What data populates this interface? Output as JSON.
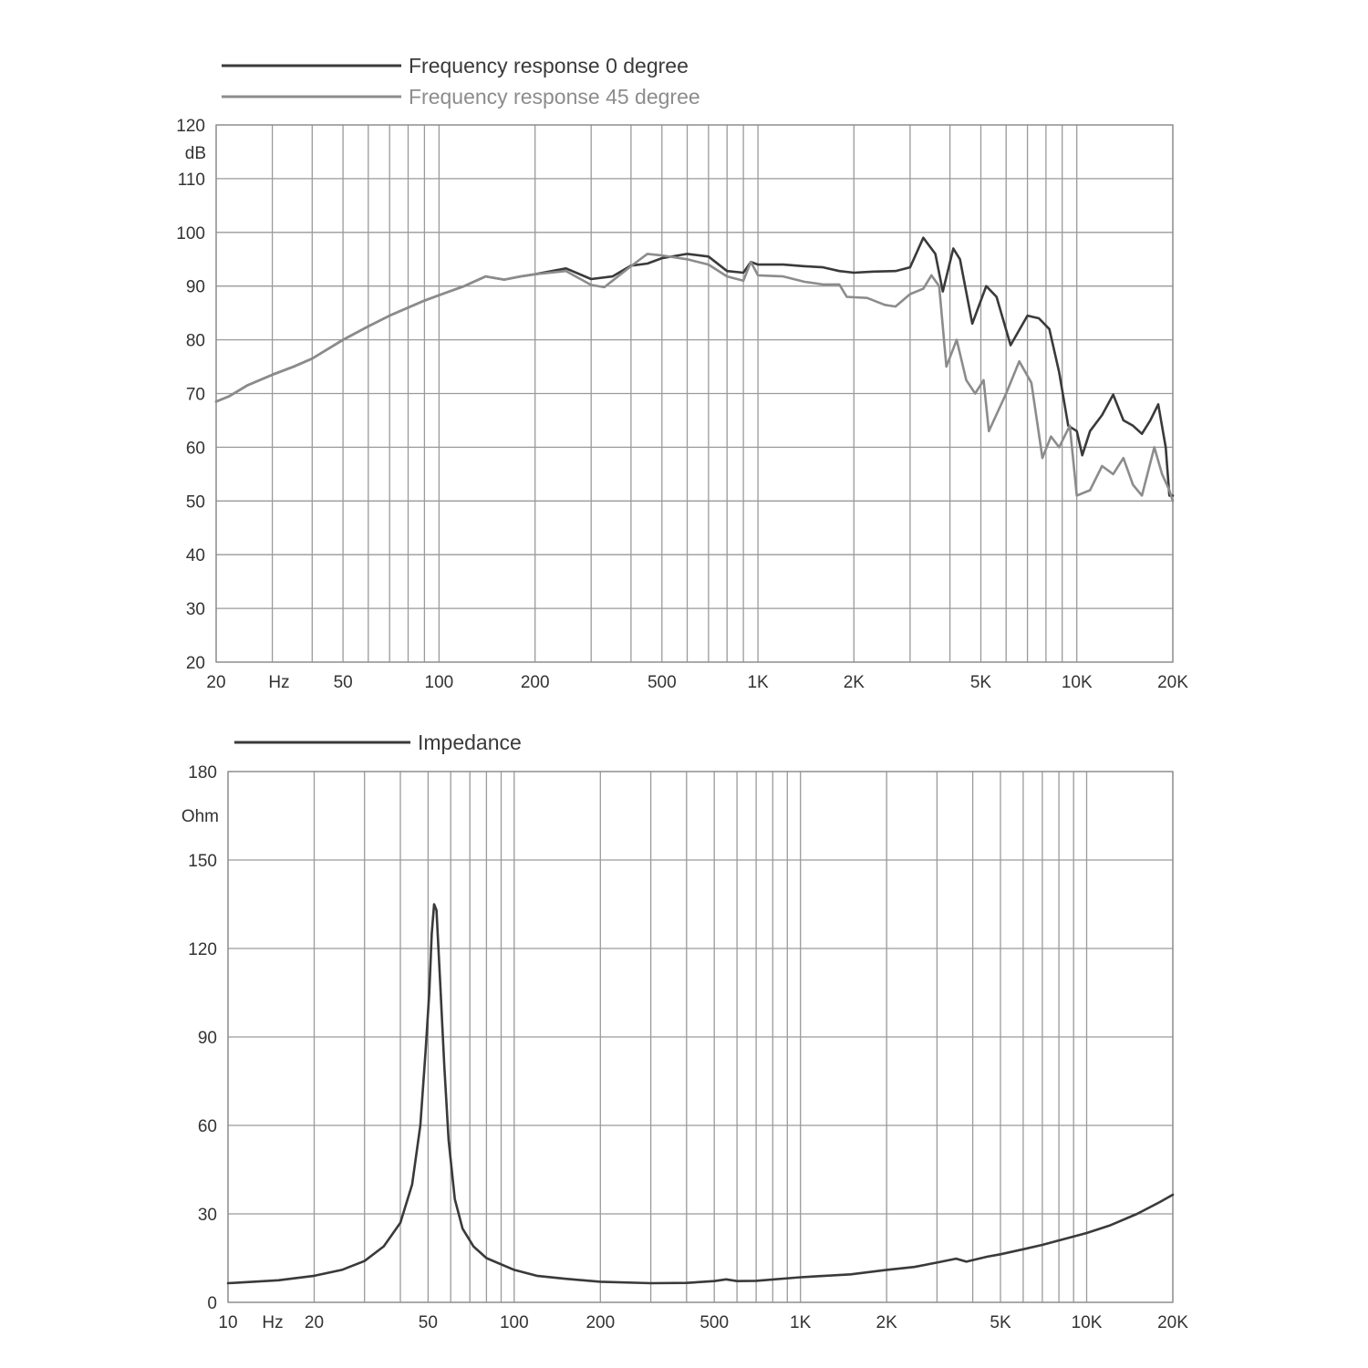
{
  "colors": {
    "series_0deg": "#3a3a3a",
    "series_45deg": "#8c8c8c",
    "impedance": "#3a3a3a",
    "grid": "#9a9a9a",
    "text": "#333333"
  },
  "chart_data": [
    {
      "type": "line",
      "x_scale": "log",
      "xlim": [
        20,
        20000
      ],
      "ylim": [
        20,
        120
      ],
      "ylabel": "dB",
      "xlabel": "Hz",
      "grid": true,
      "legend_position": "top-left",
      "y_ticks": [
        "120",
        "110",
        "100",
        "90",
        "80",
        "70",
        "60",
        "50",
        "40",
        "30",
        "20"
      ],
      "x_ticks": [
        "20",
        "50",
        "100",
        "200",
        "500",
        "1K",
        "2K",
        "5K",
        "10K",
        "20K"
      ],
      "series": [
        {
          "name": "Frequency response 0 degree",
          "points": [
            [
              20,
              68.5
            ],
            [
              22,
              69.5
            ],
            [
              25,
              71.5
            ],
            [
              30,
              73.5
            ],
            [
              35,
              75
            ],
            [
              40,
              76.5
            ],
            [
              50,
              80
            ],
            [
              60,
              82.5
            ],
            [
              70,
              84.5
            ],
            [
              80,
              86
            ],
            [
              90,
              87.3
            ],
            [
              100,
              88.3
            ],
            [
              120,
              90
            ],
            [
              140,
              91.8
            ],
            [
              160,
              91.2
            ],
            [
              180,
              91.8
            ],
            [
              200,
              92.2
            ],
            [
              250,
              93.3
            ],
            [
              300,
              91.3
            ],
            [
              350,
              91.8
            ],
            [
              400,
              93.8
            ],
            [
              450,
              94.2
            ],
            [
              500,
              95.2
            ],
            [
              600,
              96
            ],
            [
              700,
              95.5
            ],
            [
              800,
              92.8
            ],
            [
              900,
              92.5
            ],
            [
              950,
              94.5
            ],
            [
              1000,
              94
            ],
            [
              1200,
              94
            ],
            [
              1400,
              93.7
            ],
            [
              1600,
              93.5
            ],
            [
              1800,
              92.8
            ],
            [
              2000,
              92.5
            ],
            [
              2300,
              92.7
            ],
            [
              2700,
              92.8
            ],
            [
              3000,
              93.5
            ],
            [
              3300,
              99
            ],
            [
              3600,
              96
            ],
            [
              3800,
              89
            ],
            [
              4100,
              97
            ],
            [
              4300,
              95
            ],
            [
              4700,
              83
            ],
            [
              5200,
              90
            ],
            [
              5600,
              88
            ],
            [
              6200,
              79
            ],
            [
              7000,
              84.5
            ],
            [
              7600,
              84
            ],
            [
              8200,
              82
            ],
            [
              8800,
              74
            ],
            [
              9400,
              64
            ],
            [
              10000,
              63
            ],
            [
              10400,
              58.5
            ],
            [
              11000,
              63
            ],
            [
              12000,
              66
            ],
            [
              13000,
              69.8
            ],
            [
              14000,
              65
            ],
            [
              15000,
              64
            ],
            [
              16000,
              62.5
            ],
            [
              17000,
              65
            ],
            [
              18000,
              68
            ],
            [
              19000,
              60
            ],
            [
              19500,
              51
            ],
            [
              20000,
              51
            ]
          ]
        },
        {
          "name": "Frequency response 45 degree",
          "points": [
            [
              20,
              68.5
            ],
            [
              22,
              69.5
            ],
            [
              25,
              71.5
            ],
            [
              30,
              73.5
            ],
            [
              35,
              75
            ],
            [
              40,
              76.5
            ],
            [
              50,
              80
            ],
            [
              60,
              82.5
            ],
            [
              70,
              84.5
            ],
            [
              80,
              86
            ],
            [
              90,
              87.3
            ],
            [
              100,
              88.3
            ],
            [
              120,
              90
            ],
            [
              140,
              91.8
            ],
            [
              160,
              91.2
            ],
            [
              180,
              91.8
            ],
            [
              200,
              92.2
            ],
            [
              250,
              92.8
            ],
            [
              300,
              90.2
            ],
            [
              330,
              89.8
            ],
            [
              350,
              91
            ],
            [
              400,
              93.7
            ],
            [
              450,
              96
            ],
            [
              500,
              95.7
            ],
            [
              600,
              95
            ],
            [
              700,
              94
            ],
            [
              800,
              91.8
            ],
            [
              900,
              91
            ],
            [
              950,
              94.5
            ],
            [
              1000,
              92
            ],
            [
              1200,
              91.8
            ],
            [
              1400,
              90.8
            ],
            [
              1600,
              90.3
            ],
            [
              1800,
              90.3
            ],
            [
              1900,
              88
            ],
            [
              2200,
              87.8
            ],
            [
              2500,
              86.5
            ],
            [
              2700,
              86.2
            ],
            [
              3000,
              88.5
            ],
            [
              3300,
              89.5
            ],
            [
              3500,
              92
            ],
            [
              3700,
              90
            ],
            [
              3900,
              75
            ],
            [
              4200,
              80
            ],
            [
              4500,
              72.5
            ],
            [
              4800,
              70
            ],
            [
              5100,
              72.5
            ],
            [
              5300,
              63
            ],
            [
              6000,
              70
            ],
            [
              6600,
              76
            ],
            [
              7200,
              72
            ],
            [
              7800,
              58
            ],
            [
              8300,
              62
            ],
            [
              8800,
              60
            ],
            [
              9500,
              64
            ],
            [
              10000,
              51
            ],
            [
              11000,
              52
            ],
            [
              12000,
              56.5
            ],
            [
              13000,
              55
            ],
            [
              14000,
              58
            ],
            [
              15000,
              53
            ],
            [
              16000,
              51
            ],
            [
              17500,
              60
            ],
            [
              18500,
              55
            ],
            [
              19500,
              52
            ],
            [
              20000,
              50
            ]
          ]
        }
      ]
    },
    {
      "type": "line",
      "x_scale": "log",
      "xlim": [
        10,
        20000
      ],
      "ylim": [
        0,
        180
      ],
      "ylabel": "Ohm",
      "xlabel": "Hz",
      "grid": true,
      "legend_position": "top-left",
      "y_ticks": [
        "180",
        "150",
        "120",
        "90",
        "60",
        "30",
        "0"
      ],
      "x_ticks": [
        "10",
        "20",
        "50",
        "100",
        "200",
        "500",
        "1K",
        "2K",
        "5K",
        "10K",
        "20K"
      ],
      "series": [
        {
          "name": "Impedance",
          "points": [
            [
              10,
              6.5
            ],
            [
              15,
              7.5
            ],
            [
              20,
              9
            ],
            [
              25,
              11
            ],
            [
              30,
              14
            ],
            [
              35,
              19
            ],
            [
              40,
              27
            ],
            [
              44,
              40
            ],
            [
              47,
              60
            ],
            [
              49,
              85
            ],
            [
              50.5,
              105
            ],
            [
              51.5,
              125
            ],
            [
              52.5,
              135
            ],
            [
              53.5,
              133
            ],
            [
              55,
              110
            ],
            [
              57,
              80
            ],
            [
              59,
              55
            ],
            [
              62,
              35
            ],
            [
              66,
              25
            ],
            [
              72,
              19
            ],
            [
              80,
              15
            ],
            [
              100,
              11
            ],
            [
              120,
              9
            ],
            [
              150,
              8
            ],
            [
              200,
              7
            ],
            [
              300,
              6.5
            ],
            [
              400,
              6.6
            ],
            [
              500,
              7.2
            ],
            [
              550,
              7.8
            ],
            [
              600,
              7.2
            ],
            [
              700,
              7.3
            ],
            [
              1000,
              8.5
            ],
            [
              1500,
              9.5
            ],
            [
              2000,
              11
            ],
            [
              2500,
              12
            ],
            [
              3000,
              13.5
            ],
            [
              3500,
              14.8
            ],
            [
              3800,
              13.8
            ],
            [
              4500,
              15.5
            ],
            [
              5000,
              16.3
            ],
            [
              6000,
              18
            ],
            [
              7000,
              19.5
            ],
            [
              8000,
              21
            ],
            [
              10000,
              23.5
            ],
            [
              12000,
              26
            ],
            [
              15000,
              30
            ],
            [
              18000,
              34
            ],
            [
              20000,
              36.5
            ]
          ]
        }
      ]
    }
  ]
}
